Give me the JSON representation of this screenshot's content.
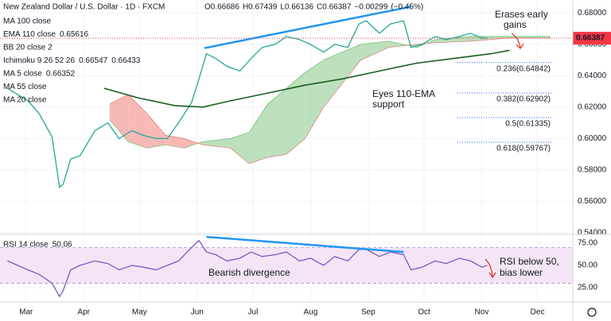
{
  "chart_data": [
    {
      "type": "line",
      "title": "New Zealand Dollar / U.S. Dollar · 1D · FXCM",
      "ohlc": [
        {
          "value": 0.66686,
          "label": "O0.66686"
        },
        {
          "value": 0.67439,
          "label": "H0.67439"
        },
        {
          "value": 0.66136,
          "label": "L0.66136"
        },
        {
          "value": 0.66387,
          "label": "C0.66387"
        }
      ],
      "change": {
        "value": -0.00299,
        "label": "−0.00299"
      },
      "change_pct": {
        "value": -0.45,
        "label": "(−0.45%)"
      },
      "indicators": [
        {
          "name": "MA 100 close"
        },
        {
          "name": "EMA 110 close",
          "values": [
            0.65616
          ],
          "color": "#1b5e20"
        },
        {
          "name": "BB 20 close 2"
        },
        {
          "name": "Ichimoku 9 26 52 26",
          "values": [
            0.66547,
            0.66433
          ],
          "color": "#2e7d32"
        },
        {
          "name": "MA 5 close",
          "values": [
            0.66352
          ],
          "color": "#2e7d32"
        },
        {
          "name": "MA 55 close"
        },
        {
          "name": "MA 20 close"
        }
      ],
      "last_price": 0.66387,
      "last_price_color": "#f23645",
      "xlim": [
        -14,
        294
      ],
      "xticks": [
        {
          "value": 0,
          "label": "Mar"
        },
        {
          "value": 31,
          "label": "Apr"
        },
        {
          "value": 61,
          "label": "May"
        },
        {
          "value": 92,
          "label": "Jun"
        },
        {
          "value": 122,
          "label": "Jul"
        },
        {
          "value": 153,
          "label": "Aug"
        },
        {
          "value": 184,
          "label": "Sep"
        },
        {
          "value": 214,
          "label": "Oct"
        },
        {
          "value": 245,
          "label": "Nov"
        },
        {
          "value": 275,
          "label": "Dec"
        }
      ],
      "ylim": [
        0.539,
        0.6882
      ],
      "yticks": [
        {
          "value": 0.54,
          "label": "0.54000"
        },
        {
          "value": 0.56,
          "label": "0.56000"
        },
        {
          "value": 0.58,
          "label": "0.58000"
        },
        {
          "value": 0.6,
          "label": "0.60000"
        },
        {
          "value": 0.62,
          "label": "0.62000"
        },
        {
          "value": 0.64,
          "label": "0.64000"
        },
        {
          "value": 0.66,
          "label": "0.66000"
        },
        {
          "value": 0.68,
          "label": "0.68000"
        }
      ],
      "grid": true,
      "cloud": {
        "x": [
          45,
          55,
          65,
          75,
          85,
          95,
          110,
          120,
          130,
          140,
          150,
          160,
          170,
          180,
          195,
          210,
          220,
          240,
          260,
          282
        ],
        "span_a": [
          0.612,
          0.598,
          0.594,
          0.596,
          0.594,
          0.598,
          0.6,
          0.604,
          0.622,
          0.632,
          0.642,
          0.65,
          0.655,
          0.66,
          0.662,
          0.658,
          0.663,
          0.665,
          0.665,
          0.665
        ],
        "span_b": [
          0.622,
          0.628,
          0.616,
          0.602,
          0.6,
          0.596,
          0.594,
          0.584,
          0.588,
          0.59,
          0.6,
          0.62,
          0.635,
          0.65,
          0.658,
          0.66,
          0.661,
          0.662,
          0.664,
          0.664
        ],
        "up_color": "#a5d6a7",
        "down_color": "#f4a29e"
      },
      "series": [
        {
          "color": "#26a69a",
          "x": [
            -10,
            1,
            7,
            14,
            18,
            20,
            24,
            29,
            33,
            37,
            44,
            50,
            57,
            63,
            70,
            76,
            82,
            89,
            93,
            97,
            102,
            108,
            115,
            121,
            127,
            134,
            140,
            147,
            153,
            160,
            166,
            173,
            179,
            183,
            190,
            196,
            203,
            207,
            213,
            220,
            226,
            233,
            239,
            245,
            248
          ],
          "values": [
            0.632,
            0.624,
            0.616,
            0.601,
            0.569,
            0.571,
            0.587,
            0.589,
            0.597,
            0.605,
            0.61,
            0.6,
            0.605,
            0.602,
            0.6,
            0.6,
            0.61,
            0.623,
            0.638,
            0.654,
            0.651,
            0.646,
            0.643,
            0.651,
            0.658,
            0.66,
            0.665,
            0.663,
            0.66,
            0.655,
            0.66,
            0.658,
            0.673,
            0.675,
            0.667,
            0.673,
            0.675,
            0.658,
            0.66,
            0.665,
            0.663,
            0.665,
            0.667,
            0.664,
            0.66387
          ]
        },
        {
          "name": "EMA 110 close",
          "color": "#1b5e20",
          "x": [
            42,
            60,
            80,
            95,
            110,
            130,
            150,
            170,
            190,
            210,
            230,
            250,
            260
          ],
          "values": [
            0.632,
            0.626,
            0.621,
            0.62,
            0.624,
            0.629,
            0.634,
            0.638,
            0.643,
            0.648,
            0.651,
            0.654,
            0.65616
          ]
        }
      ],
      "fibonacci": [
        {
          "value": 0.64842,
          "label": "0.236(0.64842)"
        },
        {
          "value": 0.62902,
          "label": "0.382(0.62902)"
        },
        {
          "value": 0.61335,
          "label": "0.5(0.61335)"
        },
        {
          "value": 0.59767,
          "label": "0.618(0.59767)"
        }
      ],
      "fib_color": "#2962ff",
      "trendline": {
        "x": [
          96,
          207
        ],
        "values": [
          0.6576,
          0.684
        ],
        "color": "#2196f3"
      },
      "annotations": [
        [
          "Erases early",
          "gains"
        ],
        [
          "Eyes 110-EMA",
          "support"
        ]
      ]
    },
    {
      "type": "line",
      "title": "RSI 14 close",
      "last_value": 50.06,
      "xlim": [
        -14,
        294
      ],
      "ylim": [
        8.9,
        83.9
      ],
      "yticks": [
        {
          "value": 25,
          "label": "25.00"
        },
        {
          "value": 50,
          "label": "50.00"
        },
        {
          "value": 75,
          "label": "75.00"
        }
      ],
      "band": [
        30,
        70
      ],
      "band_color": "#f3e5f5",
      "series": [
        {
          "color": "#7e57c2",
          "x": [
            -10,
            1,
            7,
            14,
            18,
            20,
            24,
            29,
            37,
            44,
            50,
            57,
            63,
            70,
            76,
            82,
            89,
            93,
            97,
            102,
            108,
            115,
            121,
            127,
            134,
            140,
            147,
            153,
            160,
            166,
            173,
            179,
            183,
            190,
            196,
            203,
            207,
            213,
            220,
            226,
            233,
            239,
            245,
            248
          ],
          "values": [
            55,
            45,
            40,
            30,
            15,
            22,
            45,
            50,
            55,
            52,
            45,
            50,
            48,
            45,
            50,
            55,
            70,
            78,
            65,
            62,
            55,
            58,
            65,
            60,
            62,
            65,
            55,
            58,
            50,
            60,
            55,
            68,
            68,
            60,
            65,
            62,
            45,
            48,
            55,
            52,
            58,
            55,
            48,
            50.06
          ]
        }
      ],
      "trendline": {
        "x": [
          97,
          203
        ],
        "values": [
          82,
          65
        ],
        "color": "#2196f3"
      },
      "annotations": [
        [
          "Bearish divergence"
        ],
        [
          "RSI below 50,",
          "bias lower"
        ]
      ]
    }
  ]
}
